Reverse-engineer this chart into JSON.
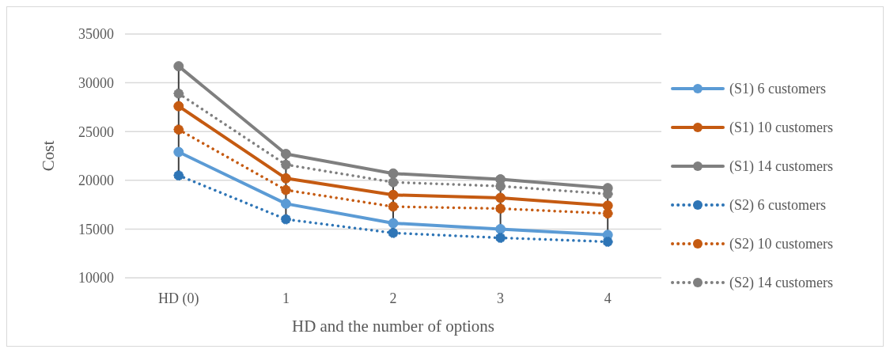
{
  "chart_data": {
    "type": "line",
    "xlabel": "HD and the number of options",
    "ylabel": "Cost",
    "categories": [
      "HD (0)",
      "1",
      "2",
      "3",
      "4"
    ],
    "ylim": [
      10000,
      35000
    ],
    "yticks": [
      10000,
      15000,
      20000,
      25000,
      30000,
      35000
    ],
    "grid": "y",
    "legend": "right",
    "marker": "circle",
    "series": [
      {
        "name": "(S1) 6 customers",
        "color": "#5b9bd5",
        "line_style": "solid",
        "values": [
          22900,
          17600,
          15600,
          15000,
          14400
        ]
      },
      {
        "name": "(S1) 10 customers",
        "color": "#c55a11",
        "line_style": "solid",
        "values": [
          27600,
          20200,
          18500,
          18200,
          17400
        ]
      },
      {
        "name": "(S1) 14 customers",
        "color": "#7f7f7f",
        "line_style": "solid",
        "values": [
          31700,
          22700,
          20700,
          20100,
          19200
        ]
      },
      {
        "name": "(S2) 6 customers",
        "color": "#2e75b6",
        "line_style": "dotted",
        "values": [
          20500,
          16000,
          14600,
          14100,
          13700
        ]
      },
      {
        "name": "(S2) 10 customers",
        "color": "#c55a11",
        "line_style": "dotted",
        "values": [
          25200,
          19000,
          17300,
          17100,
          16600
        ]
      },
      {
        "name": "(S2) 14 customers",
        "color": "#7f7f7f",
        "line_style": "dotted",
        "values": [
          28900,
          21600,
          19800,
          19400,
          18600
        ]
      }
    ]
  }
}
